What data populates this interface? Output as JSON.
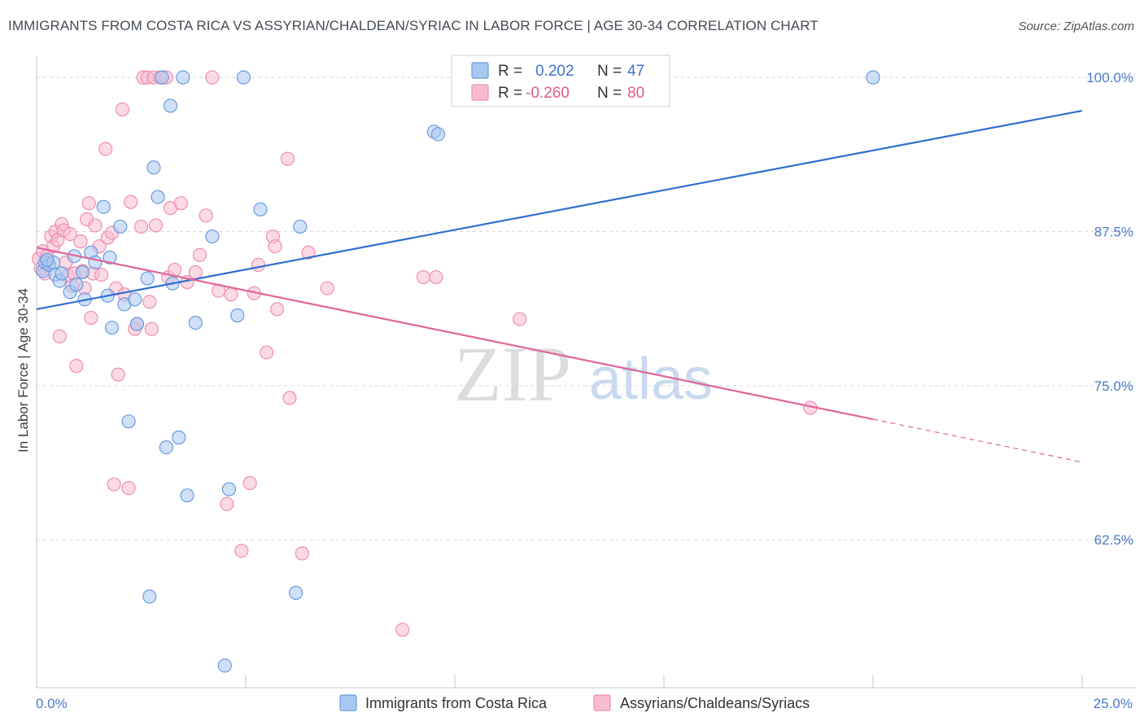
{
  "header": {
    "title": "IMMIGRANTS FROM COSTA RICA VS ASSYRIAN/CHALDEAN/SYRIAC IN LABOR FORCE | AGE 30-34 CORRELATION CHART",
    "source": "Source: ZipAtlas.com"
  },
  "watermark": {
    "zip": "ZIP",
    "atlas": "atlas"
  },
  "legend": {
    "r_label": "R =",
    "n_label": "N =",
    "blue": {
      "r": "0.202",
      "n": "47"
    },
    "pink": {
      "r": "-0.260",
      "n": "80"
    }
  },
  "colors": {
    "blue_fill": "#a9c8f0",
    "blue_stroke": "#6a9be0",
    "blue_line": "#2f6fd0",
    "pink_fill": "#f7bcd0",
    "pink_stroke": "#ee8fb0",
    "pink_line": "#e0659a",
    "tick_text": "#4a7ac8",
    "grid": "#d9d9d9"
  },
  "chart_data": {
    "type": "scatter",
    "title": "IMMIGRANTS FROM COSTA RICA VS ASSYRIAN/CHALDEAN/SYRIAC IN LABOR FORCE | AGE 30-34 CORRELATION CHART",
    "xlabel": "",
    "ylabel": "In Labor Force | Age 30-34",
    "xlim": [
      0,
      25
    ],
    "ylim": [
      50.5,
      101
    ],
    "x_tick_labels": [
      "0.0%",
      "25.0%"
    ],
    "y_ticks": [
      62.5,
      75.0,
      87.5,
      100.0
    ],
    "y_tick_labels": [
      "62.5%",
      "75.0%",
      "87.5%",
      "100.0%"
    ],
    "series": [
      {
        "name": "Immigrants from Costa Rica",
        "color": "blue",
        "r": 0.202,
        "n": 47,
        "trend": {
          "x": [
            0,
            25
          ],
          "y": [
            81.2,
            97.3
          ],
          "dashed_from": null
        },
        "points": [
          [
            0.15,
            84.3
          ],
          [
            0.2,
            85.0
          ],
          [
            0.3,
            84.8
          ],
          [
            0.4,
            85.0
          ],
          [
            0.45,
            84.0
          ],
          [
            0.55,
            83.5
          ],
          [
            0.8,
            82.6
          ],
          [
            0.9,
            85.5
          ],
          [
            0.95,
            83.2
          ],
          [
            1.1,
            84.2
          ],
          [
            1.15,
            82.0
          ],
          [
            1.3,
            85.8
          ],
          [
            1.4,
            85.0
          ],
          [
            1.6,
            89.5
          ],
          [
            1.7,
            82.3
          ],
          [
            1.75,
            85.4
          ],
          [
            1.8,
            79.7
          ],
          [
            2.0,
            87.9
          ],
          [
            2.1,
            81.6
          ],
          [
            2.2,
            72.1
          ],
          [
            2.35,
            82.0
          ],
          [
            2.4,
            80.0
          ],
          [
            2.65,
            83.7
          ],
          [
            2.7,
            57.9
          ],
          [
            2.8,
            92.7
          ],
          [
            2.9,
            90.3
          ],
          [
            3.0,
            100.0
          ],
          [
            3.1,
            70.0
          ],
          [
            3.2,
            97.7
          ],
          [
            3.25,
            83.3
          ],
          [
            3.4,
            70.8
          ],
          [
            3.5,
            100.0
          ],
          [
            3.6,
            66.1
          ],
          [
            3.8,
            80.1
          ],
          [
            4.2,
            87.1
          ],
          [
            4.5,
            52.3
          ],
          [
            4.6,
            66.6
          ],
          [
            4.8,
            80.7
          ],
          [
            4.95,
            100.0
          ],
          [
            5.35,
            89.3
          ],
          [
            6.2,
            58.2
          ],
          [
            6.3,
            87.9
          ],
          [
            9.5,
            95.6
          ],
          [
            9.6,
            95.4
          ],
          [
            20.0,
            100.0
          ],
          [
            0.25,
            85.2
          ],
          [
            0.6,
            84.1
          ]
        ]
      },
      {
        "name": "Assyrians/Chaldeans/Syriacs",
        "color": "pink",
        "r": -0.26,
        "n": 80,
        "trend": {
          "x": [
            0,
            25
          ],
          "y": [
            86.2,
            68.8
          ],
          "dashed_from": 20.0
        },
        "points": [
          [
            0.05,
            85.3
          ],
          [
            0.1,
            84.5
          ],
          [
            0.15,
            85.9
          ],
          [
            0.2,
            84.1
          ],
          [
            0.25,
            85.5
          ],
          [
            0.3,
            84.8
          ],
          [
            0.35,
            87.1
          ],
          [
            0.4,
            86.3
          ],
          [
            0.45,
            87.5
          ],
          [
            0.5,
            86.8
          ],
          [
            0.55,
            79.0
          ],
          [
            0.6,
            88.1
          ],
          [
            0.65,
            87.6
          ],
          [
            0.7,
            85.0
          ],
          [
            0.75,
            83.9
          ],
          [
            0.8,
            87.3
          ],
          [
            0.85,
            83.1
          ],
          [
            0.9,
            84.1
          ],
          [
            0.95,
            76.6
          ],
          [
            1.05,
            86.7
          ],
          [
            1.1,
            84.3
          ],
          [
            1.15,
            82.9
          ],
          [
            1.2,
            88.5
          ],
          [
            1.25,
            89.8
          ],
          [
            1.3,
            80.5
          ],
          [
            1.35,
            84.1
          ],
          [
            1.4,
            88.0
          ],
          [
            1.5,
            86.3
          ],
          [
            1.55,
            84.0
          ],
          [
            1.65,
            94.2
          ],
          [
            1.7,
            87.0
          ],
          [
            1.8,
            87.4
          ],
          [
            1.85,
            67.0
          ],
          [
            1.9,
            82.9
          ],
          [
            1.95,
            75.9
          ],
          [
            2.05,
            97.4
          ],
          [
            2.1,
            82.4
          ],
          [
            2.2,
            66.7
          ],
          [
            2.25,
            89.9
          ],
          [
            2.35,
            79.6
          ],
          [
            2.4,
            80.0
          ],
          [
            2.5,
            87.9
          ],
          [
            2.55,
            100.0
          ],
          [
            2.65,
            100.0
          ],
          [
            2.7,
            81.8
          ],
          [
            2.75,
            79.6
          ],
          [
            2.8,
            100.0
          ],
          [
            2.85,
            88.0
          ],
          [
            2.95,
            100.0
          ],
          [
            3.1,
            100.0
          ],
          [
            3.15,
            83.8
          ],
          [
            3.2,
            89.4
          ],
          [
            3.3,
            84.4
          ],
          [
            3.45,
            89.8
          ],
          [
            3.6,
            83.4
          ],
          [
            3.8,
            84.2
          ],
          [
            3.9,
            85.6
          ],
          [
            4.05,
            88.8
          ],
          [
            4.2,
            100.0
          ],
          [
            4.35,
            82.7
          ],
          [
            4.55,
            65.4
          ],
          [
            4.65,
            82.4
          ],
          [
            4.9,
            61.6
          ],
          [
            5.1,
            67.1
          ],
          [
            5.2,
            82.5
          ],
          [
            5.3,
            84.8
          ],
          [
            5.5,
            77.7
          ],
          [
            5.65,
            87.1
          ],
          [
            5.7,
            86.3
          ],
          [
            5.75,
            81.2
          ],
          [
            6.0,
            93.4
          ],
          [
            6.05,
            74.0
          ],
          [
            6.35,
            61.4
          ],
          [
            6.5,
            85.8
          ],
          [
            6.95,
            82.9
          ],
          [
            8.75,
            55.2
          ],
          [
            9.25,
            83.8
          ],
          [
            9.55,
            83.8
          ],
          [
            11.55,
            80.4
          ],
          [
            18.5,
            73.2
          ]
        ]
      }
    ]
  },
  "bottom_legend": {
    "blue_label": "Immigrants from Costa Rica",
    "pink_label": "Assyrians/Chaldeans/Syriacs"
  }
}
